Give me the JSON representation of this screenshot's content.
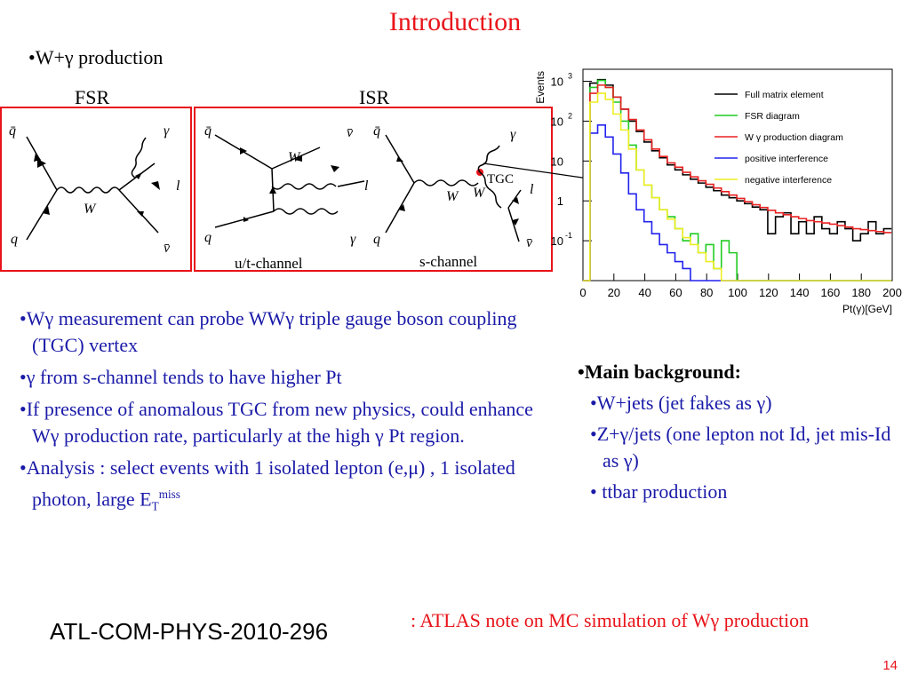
{
  "slide": {
    "title": "Introduction",
    "subtitle": "•W+γ production",
    "fsr_label": "FSR",
    "isr_label": "ISR",
    "page_number": "14"
  },
  "diagrams": {
    "u_t_channel": "u/t-channel",
    "s_channel": "s-channel",
    "tgc": "TGC",
    "particles": {
      "qbar": "q̄",
      "q": "q",
      "W": "W",
      "gamma": "γ",
      "l": "l",
      "nubar": "v̄"
    }
  },
  "left_bullets": [
    "•Wγ measurement can probe WWγ triple gauge boson coupling (TGC) vertex",
    "•γ from s-channel tends to have higher Pt",
    "•If presence of anomalous TGC from new physics, could enhance Wγ production rate, particularly at the high γ Pt region.",
    "•Analysis : select events with 1 isolated lepton (e,μ) , 1 isolated photon, large E"
  ],
  "etmiss": {
    "sub": "T",
    "sup": "miss"
  },
  "right": {
    "heading": "Main background:",
    "items": [
      "•W+jets (jet fakes as γ)",
      "•Z+γ/jets (one lepton not Id, jet mis-Id as γ)",
      "• ttbar production"
    ]
  },
  "footer": {
    "reference": "ATL-COM-PHYS-2010-296",
    "note": ": ATLAS note on MC simulation of Wγ production"
  },
  "chart_data": {
    "type": "line",
    "xlabel": "Pt(γ)[GeV]",
    "ylabel": "Events",
    "xlim": [
      0,
      200
    ],
    "ylim": [
      0.01,
      2000
    ],
    "log_y": true,
    "legend_position": "top-right",
    "xticks": [
      "0",
      "20",
      "40",
      "60",
      "80",
      "100",
      "120",
      "140",
      "160",
      "180",
      "200"
    ],
    "yticks": [
      {
        "value": 1000,
        "base": "10",
        "exp": "3"
      },
      {
        "value": 100,
        "base": "10",
        "exp": "2"
      },
      {
        "value": 10,
        "base": "10",
        "exp": ""
      },
      {
        "value": 1,
        "base": "1",
        "exp": ""
      },
      {
        "value": 0.1,
        "base": "10",
        "exp": "-1"
      }
    ],
    "x": [
      2,
      7,
      12,
      17,
      22,
      27,
      32,
      37,
      42,
      47,
      52,
      57,
      62,
      67,
      72,
      77,
      82,
      87,
      92,
      97,
      102,
      107,
      112,
      117,
      122,
      127,
      132,
      137,
      142,
      147,
      152,
      157,
      162,
      167,
      172,
      177,
      182,
      187,
      192,
      197
    ],
    "series": [
      {
        "name": "Full matrix element",
        "color": "#000000",
        "values": [
          0.01,
          900,
          1100,
          800,
          400,
          200,
          100,
          55,
          30,
          18,
          12,
          8,
          6,
          4.5,
          3.5,
          2.8,
          2.2,
          1.8,
          1.4,
          1.2,
          1.0,
          0.85,
          0.7,
          0.6,
          0.15,
          0.4,
          0.5,
          0.15,
          0.3,
          0.15,
          0.4,
          0.2,
          0.15,
          0.3,
          0.2,
          0.1,
          0.15,
          0.3,
          0.15,
          0.2
        ]
      },
      {
        "name": "FSR diagram",
        "color": "#22cc22",
        "values": [
          0.01,
          700,
          1050,
          700,
          300,
          100,
          25,
          6,
          2.5,
          1.2,
          0.6,
          0.4,
          0.2,
          0.1,
          0.15,
          0.05,
          0.08,
          0.02,
          0.1,
          0.05,
          0.01,
          0.01,
          0.01,
          0.01,
          0.01,
          0.01,
          0.01,
          0.01,
          0.01,
          0.01,
          0.01,
          0.01,
          0.01,
          0.01,
          0.01,
          0.01,
          0.01,
          0.01,
          0.01,
          0.01
        ]
      },
      {
        "name": "W γ production diagram",
        "color": "#e82222",
        "values": [
          0.01,
          500,
          800,
          700,
          400,
          200,
          110,
          60,
          34,
          20,
          13,
          9,
          7,
          5.2,
          4.0,
          3.2,
          2.6,
          2.1,
          1.7,
          1.4,
          1.15,
          0.95,
          0.8,
          0.68,
          0.58,
          0.5,
          0.45,
          0.4,
          0.36,
          0.32,
          0.3,
          0.28,
          0.26,
          0.24,
          0.22,
          0.2,
          0.19,
          0.18,
          0.17,
          0.16
        ]
      },
      {
        "name": "positive interference",
        "color": "#2222ee",
        "values": [
          0.01,
          50,
          80,
          40,
          15,
          5,
          1.5,
          0.6,
          0.3,
          0.15,
          0.08,
          0.05,
          0.03,
          0.02,
          0.01,
          0.01,
          0.01,
          0.01,
          0.01,
          0.01,
          0.01,
          0.01,
          0.01,
          0.01,
          0.01,
          0.01,
          0.01,
          0.01,
          0.01,
          0.01,
          0.01,
          0.01,
          0.01,
          0.01,
          0.01,
          0.01,
          0.01,
          0.01,
          0.01,
          0.01
        ]
      },
      {
        "name": "negative interference",
        "color": "#eeee22",
        "values": [
          0.01,
          300,
          500,
          350,
          150,
          60,
          20,
          6,
          2.5,
          1.2,
          0.6,
          0.35,
          0.2,
          0.12,
          0.08,
          0.05,
          0.03,
          0.02,
          0.01,
          0.01,
          0.01,
          0.01,
          0.01,
          0.01,
          0.01,
          0.01,
          0.01,
          0.01,
          0.01,
          0.01,
          0.01,
          0.01,
          0.01,
          0.01,
          0.01,
          0.01,
          0.01,
          0.01,
          0.01,
          0.01
        ]
      }
    ]
  }
}
